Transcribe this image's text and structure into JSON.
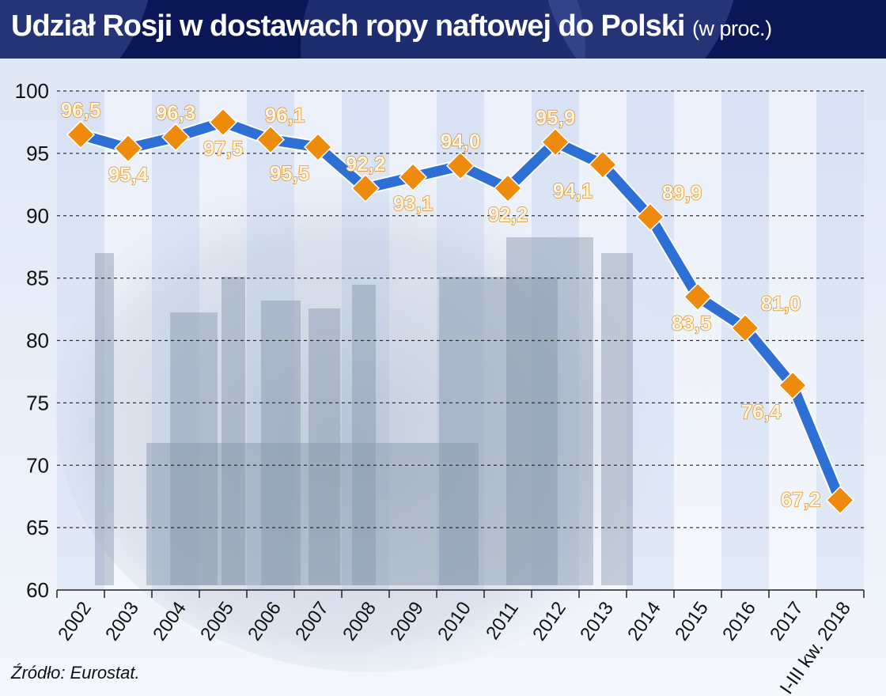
{
  "header": {
    "title": "Udział Rosji w dostawach ropy naftowej do Polski",
    "unit": "(w proc.)"
  },
  "footer": {
    "source": "Źródło: Eurostat."
  },
  "colors": {
    "header_bg": "#0a1655",
    "line": "#2e6fd6",
    "marker": "#ee8a0c",
    "label_text": "#fff4dc",
    "label_outline": "#d97c05"
  },
  "chart_data": {
    "type": "line",
    "title": "Udział Rosji w dostawach ropy naftowej do Polski (w proc.)",
    "xlabel": "",
    "ylabel": "",
    "ylim": [
      60,
      100
    ],
    "yticks": [
      60,
      65,
      70,
      75,
      80,
      85,
      90,
      95,
      100
    ],
    "grid": "horizontal dashed",
    "legend": "none",
    "categories": [
      "2002",
      "2003",
      "2004",
      "2005",
      "2006",
      "2007",
      "2008",
      "2009",
      "2010",
      "2011",
      "2012",
      "2013",
      "2014",
      "2015",
      "2016",
      "2017",
      "I-III kw. 2018"
    ],
    "series": [
      {
        "name": "Udział Rosji (%)",
        "values": [
          96.5,
          95.4,
          96.3,
          97.5,
          96.1,
          95.5,
          92.2,
          93.1,
          94.0,
          92.2,
          95.9,
          94.1,
          89.9,
          83.5,
          81.0,
          76.4,
          67.2
        ],
        "labels": [
          "96,5",
          "95,4",
          "96,3",
          "97,5",
          "96,1",
          "95,5",
          "92,2",
          "93,1",
          "94,0",
          "92,2",
          "95,9",
          "94,1",
          "89,9",
          "83,5",
          "81,0",
          "76,4",
          "67,2"
        ]
      }
    ],
    "source": "Źródło: Eurostat."
  }
}
